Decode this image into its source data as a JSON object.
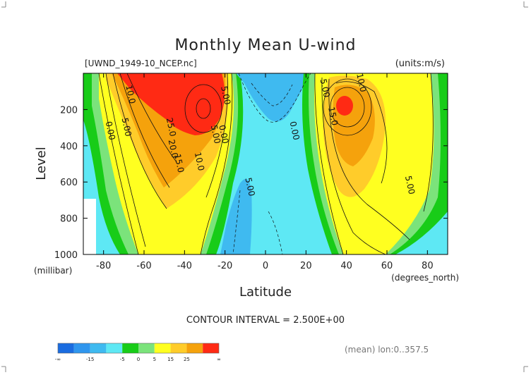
{
  "chart_data": {
    "type": "contour",
    "title": "Monthly Mean U-wind",
    "dataset_label": "[UWND_1949-10_NCEP.nc]",
    "units_label": "(units:m/s)",
    "xlabel": "Latitude",
    "x_unit_label": "(degrees_north)",
    "ylabel": "Level",
    "y_unit_label": "(millibar)",
    "xlim": [
      -90,
      90
    ],
    "ylim": [
      1000,
      0
    ],
    "x_ticks": [
      -80,
      -60,
      -40,
      -20,
      0,
      20,
      40,
      60,
      80
    ],
    "y_ticks": [
      200,
      400,
      600,
      800,
      1000
    ],
    "contour_interval_label": "CONTOUR INTERVAL = 2.500E+00",
    "averaging_label": "(mean) lon:0..357.5",
    "contour_labels": [
      {
        "text": "10.0",
        "lat": -68,
        "lev": 120
      },
      {
        "text": "5.00",
        "lat": -70,
        "lev": 300
      },
      {
        "text": "0.00",
        "lat": -78,
        "lev": 320
      },
      {
        "text": "25.0",
        "lat": -48,
        "lev": 300
      },
      {
        "text": "20.0",
        "lat": -47,
        "lev": 420
      },
      {
        "text": "15.0",
        "lat": -44,
        "lev": 500
      },
      {
        "text": "10.0",
        "lat": -34,
        "lev": 490
      },
      {
        "text": "5.00",
        "lat": -26,
        "lev": 340
      },
      {
        "text": "0.00",
        "lat": -22,
        "lev": 340
      },
      {
        "text": "5.00",
        "lat": -21,
        "lev": 125
      },
      {
        "text": "5.00",
        "lat": -9,
        "lev": 630
      },
      {
        "text": "0.00",
        "lat": 13,
        "lev": 320
      },
      {
        "text": "5.00",
        "lat": 28,
        "lev": 85
      },
      {
        "text": "10.0",
        "lat": 46,
        "lev": 55
      },
      {
        "text": "15.0",
        "lat": 32,
        "lev": 240
      },
      {
        "text": "5.00",
        "lat": 70,
        "lev": 620
      }
    ],
    "colorbar": {
      "colors": [
        "#1a6ce0",
        "#2f96ee",
        "#3fbaf0",
        "#5ee8f4",
        "#18cc18",
        "#7be37b",
        "#ffff20",
        "#ffcc2a",
        "#f5a20c",
        "#ff2a14"
      ],
      "tick_labels": [
        "-∞",
        "-15",
        "-5",
        "0",
        "5",
        "15",
        "25",
        "∞"
      ]
    }
  }
}
